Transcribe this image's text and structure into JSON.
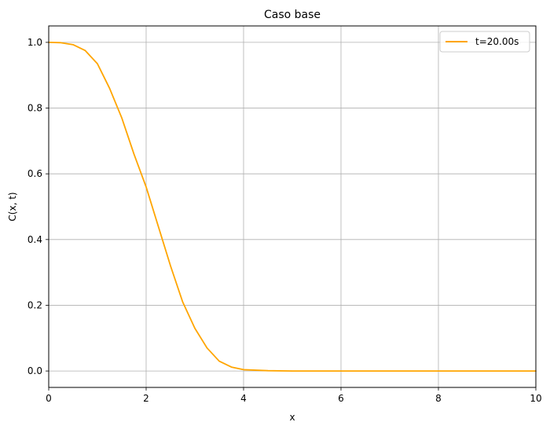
{
  "chart_data": {
    "type": "line",
    "title": "Caso base",
    "xlabel": "x",
    "ylabel": "C(x, t)",
    "xlim": [
      0,
      10
    ],
    "ylim": [
      -0.05,
      1.05
    ],
    "xticks": [
      0,
      2,
      4,
      6,
      8,
      10
    ],
    "xtick_labels": [
      "0",
      "2",
      "4",
      "6",
      "8",
      "10"
    ],
    "yticks": [
      0.0,
      0.2,
      0.4,
      0.6,
      0.8,
      1.0
    ],
    "ytick_labels": [
      "0.0",
      "0.2",
      "0.4",
      "0.6",
      "0.8",
      "1.0"
    ],
    "grid": true,
    "legend_position": "top-right",
    "series": [
      {
        "name": "t=20.00s",
        "color": "#FFA500",
        "x": [
          0,
          0.25,
          0.5,
          0.75,
          1.0,
          1.25,
          1.5,
          1.75,
          2.0,
          2.25,
          2.5,
          2.75,
          3.0,
          3.25,
          3.5,
          3.75,
          4.0,
          4.5,
          5.0,
          6.0,
          7.0,
          8.0,
          9.0,
          10.0
        ],
        "y": [
          1.0,
          0.999,
          0.993,
          0.975,
          0.935,
          0.86,
          0.77,
          0.66,
          0.56,
          0.44,
          0.32,
          0.21,
          0.13,
          0.07,
          0.03,
          0.012,
          0.004,
          0.001,
          0.0,
          0.0,
          0.0,
          0.0,
          0.0,
          0.0
        ]
      }
    ]
  }
}
